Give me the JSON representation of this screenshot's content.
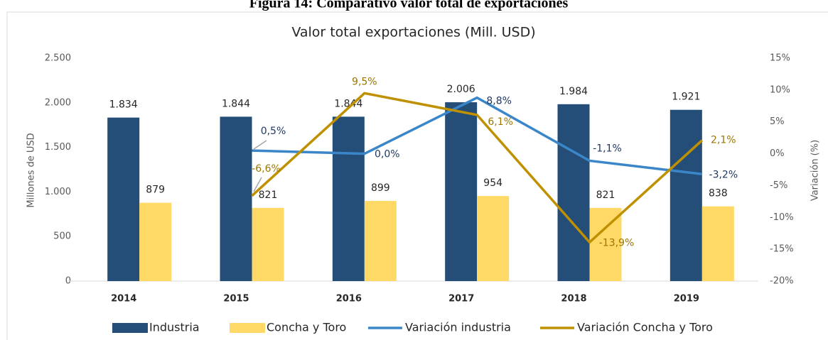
{
  "figure_title": "Figura 14: Comparativo valor total de exportaciones",
  "chart_data": {
    "type": "bar",
    "title": "Valor total exportaciones (Mill. USD)",
    "y_label": "Millones de USD",
    "y2_label": "Variación (%)",
    "categories": [
      "2014",
      "2015",
      "2016",
      "2017",
      "2018",
      "2019"
    ],
    "ylim": [
      0,
      2500
    ],
    "yticks": [
      0,
      500,
      {
        "value": 1000,
        "label": "1.000"
      },
      {
        "value": 1500,
        "label": "1.500"
      },
      {
        "value": 2000,
        "label": "2.000"
      },
      {
        "value": 2500,
        "label": "2.500"
      }
    ],
    "y2lim": [
      -20,
      15
    ],
    "y2ticks": [
      {
        "value": -20,
        "label": "-20%"
      },
      {
        "value": -15,
        "label": "-15%"
      },
      {
        "value": -10,
        "label": "-10%"
      },
      {
        "value": -5,
        "label": "-5%"
      },
      {
        "value": 0,
        "label": "0%"
      },
      {
        "value": 5,
        "label": "5%"
      },
      {
        "value": 10,
        "label": "10%"
      },
      {
        "value": 15,
        "label": "15%"
      }
    ],
    "legend": "bottom",
    "series": [
      {
        "name": "Industria",
        "type": "bar",
        "color": "#244d77",
        "values": [
          1834,
          1844,
          1844,
          2006,
          1984,
          1921
        ],
        "value_labels": [
          "1.834",
          "1.844",
          "1.844",
          "2.006",
          "1.984",
          "1.921"
        ]
      },
      {
        "name": "Concha y Toro",
        "type": "bar",
        "color": "#ffd966",
        "values": [
          879,
          821,
          899,
          954,
          821,
          838
        ]
      },
      {
        "name": "Variación industria",
        "type": "line",
        "axis": "y2",
        "color": "#3a86c8",
        "values": [
          null,
          0.5,
          0.0,
          8.8,
          -1.1,
          -3.2
        ],
        "value_labels": [
          null,
          "0,5%",
          "0,0%",
          "8,8%",
          "-1,1%",
          "-3,2%"
        ]
      },
      {
        "name": "Variación Concha y Toro",
        "type": "line",
        "axis": "y2",
        "color": "#bf9000",
        "values": [
          null,
          -6.6,
          9.5,
          6.1,
          -13.9,
          2.1
        ],
        "value_labels": [
          null,
          "-6,6%",
          "9,5%",
          "6,1%",
          "-13,9%",
          "2,1%"
        ]
      }
    ]
  }
}
